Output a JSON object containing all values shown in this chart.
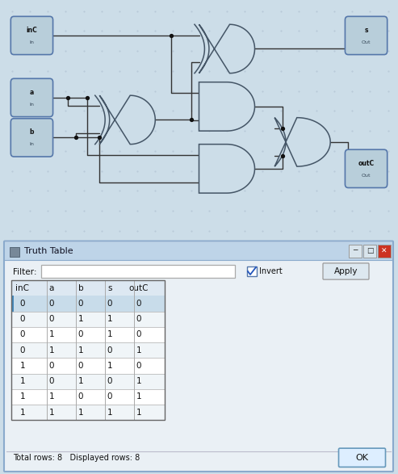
{
  "title": "Truth Table",
  "columns": [
    "inC",
    "a",
    "b",
    "s",
    "outC"
  ],
  "rows": [
    [
      0,
      0,
      0,
      0,
      0
    ],
    [
      0,
      0,
      1,
      1,
      0
    ],
    [
      0,
      1,
      0,
      1,
      0
    ],
    [
      0,
      1,
      1,
      0,
      1
    ],
    [
      1,
      0,
      0,
      1,
      0
    ],
    [
      1,
      0,
      1,
      0,
      1
    ],
    [
      1,
      1,
      0,
      0,
      1
    ],
    [
      1,
      1,
      1,
      1,
      1
    ]
  ],
  "footer": "Total rows: 8   Displayed rows: 8",
  "fig_bg": "#ccdde8",
  "circuit_bg": "#dce8f0",
  "dialog_bg": "#eaf0f5",
  "dialog_border": "#8aaacc",
  "title_bar_grad_top": "#bed4e8",
  "title_bar_grad_bot": "#a8c4dc",
  "header_bg": "#dde8f2",
  "row_bg_alt": "#f0f5f8",
  "row_bg_sel": "#c8dcea",
  "text_color": "#111111",
  "gate_fill": "#ccdde8",
  "gate_border": "#445566",
  "wire_color": "#333333",
  "node_box_fill": "#b8ceda",
  "node_box_border": "#5577aa",
  "dot_color": "#111111",
  "button_bg": "#dde8f0",
  "ok_border": "#6699bb",
  "close_red": "#cc3322"
}
